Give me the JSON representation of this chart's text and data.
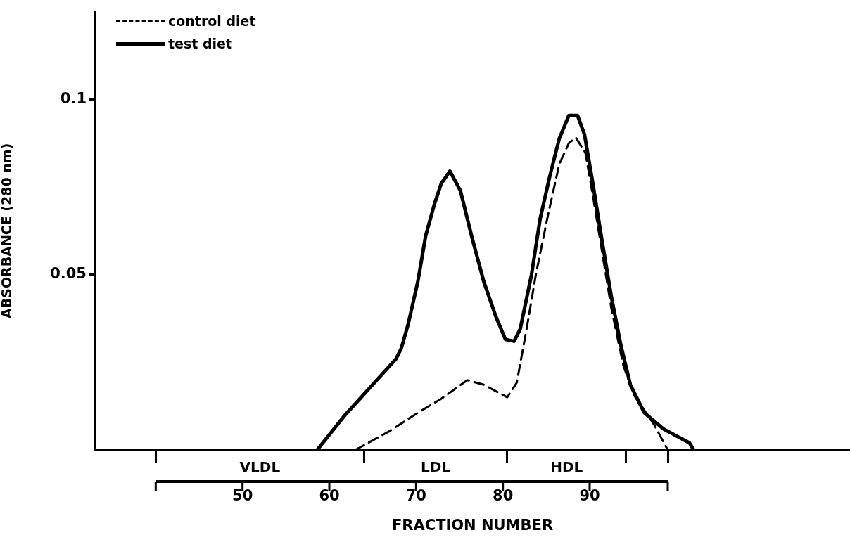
{
  "chart_data": {
    "type": "line",
    "xlabel": "FRACTION NUMBER",
    "ylabel": "ABSORBANCE (280 nm)",
    "xlim": [
      33,
      120
    ],
    "xticks": [
      {
        "value": 40,
        "label": null
      },
      50,
      60,
      {
        "value": 64,
        "label": null
      },
      70,
      80,
      {
        "value": 80.5,
        "label": null
      },
      90,
      {
        "value": 94.2,
        "label": null
      },
      {
        "value": 99,
        "label": null
      }
    ],
    "ylim": [
      0,
      0.125
    ],
    "yticks": [
      0.05,
      0.1
    ],
    "grid": false,
    "legend": "top left",
    "marker": "none",
    "annotations": [
      "VLDL",
      "LDL",
      "HDL"
    ],
    "series": [
      {
        "name": "control diet",
        "color": "#000000",
        "line_style": "dashed",
        "x": [
          63.0,
          66.9,
          70.2,
          72.9,
          75.9,
          77.8,
          80.5,
          81.6,
          82.7,
          83.8,
          85.2,
          86.5,
          87.6,
          88.4,
          89.5,
          90.3,
          91.4,
          92.5,
          93.9,
          95.2,
          97.4,
          99.0
        ],
        "values": [
          0,
          0.0053,
          0.0106,
          0.0146,
          0.0199,
          0.0186,
          0.015,
          0.0192,
          0.034,
          0.05,
          0.067,
          0.0815,
          0.0875,
          0.0891,
          0.0848,
          0.0736,
          0.057,
          0.0404,
          0.0239,
          0.0153,
          0.0073,
          0
        ]
      },
      {
        "name": "test diet",
        "color": "#000000",
        "line_style": "solid",
        "x": [
          58.6,
          61.8,
          67.7,
          68.3,
          69.1,
          70.2,
          71.1,
          72.1,
          72.9,
          73.9,
          75.1,
          76.4,
          77.8,
          79.2,
          80.3,
          81.3,
          82.0,
          83.3,
          84.3,
          85.4,
          86.5,
          87.6,
          88.6,
          89.4,
          90.3,
          91.4,
          92.5,
          93.6,
          94.7,
          96.3,
          98.5,
          101.5,
          102.0
        ],
        "values": [
          0,
          0.0099,
          0.026,
          0.029,
          0.036,
          0.048,
          0.061,
          0.07,
          0.076,
          0.0795,
          0.074,
          0.061,
          0.048,
          0.038,
          0.0315,
          0.031,
          0.0345,
          0.05,
          0.066,
          0.078,
          0.0888,
          0.0954,
          0.0954,
          0.09,
          0.077,
          0.06,
          0.0437,
          0.0298,
          0.0185,
          0.0106,
          0.006,
          0.002,
          0
        ]
      }
    ]
  }
}
